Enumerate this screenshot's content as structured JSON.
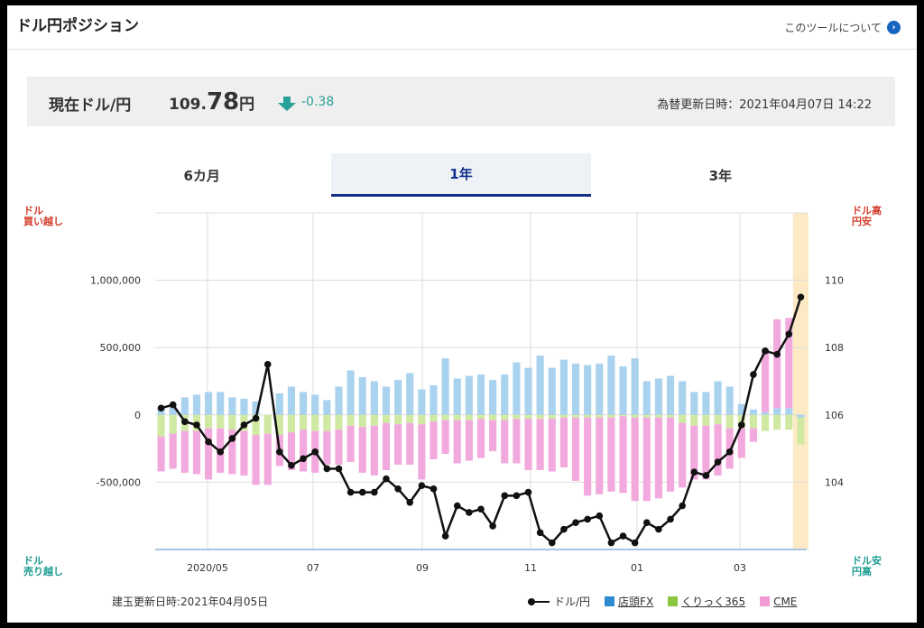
{
  "header": {
    "title": "ドル円ポジション",
    "about_link": "このツールについて",
    "about_icon": "chevron-right-icon"
  },
  "rate": {
    "label": "現在ドル/円",
    "value_int": "109.",
    "value_dec": "78",
    "unit": "円",
    "change": "-0.38",
    "direction_icon": "arrow-down-icon",
    "updated": "為替更新日時：2021年04月07日 14:22"
  },
  "tabs": [
    {
      "label": "6カ月",
      "active": false
    },
    {
      "label": "1年",
      "active": true
    },
    {
      "label": "3年",
      "active": false
    }
  ],
  "corners": {
    "left_top": [
      "ドル",
      "買い越し"
    ],
    "left_bottom": [
      "ドル",
      "売り越し"
    ],
    "right_top": [
      "ドル高",
      "円安"
    ],
    "right_bottom": [
      "ドル安",
      "円高"
    ]
  },
  "footer": {
    "position_updated": "建玉更新日時:2021年04月05日"
  },
  "legend": [
    {
      "label": "ドル/円",
      "color": "#111111",
      "kind": "line"
    },
    {
      "label": "店頭FX",
      "color": "#2d8ad1",
      "kind": "box"
    },
    {
      "label": "くりっく365",
      "color": "#8dc63f",
      "kind": "box"
    },
    {
      "label": "CME",
      "color": "#f19ad4",
      "kind": "box"
    }
  ],
  "chart_data": {
    "type": "bar",
    "x_ticks": [
      "2020/05",
      "07",
      "09",
      "11",
      "01",
      "03"
    ],
    "y_left_ticks": [
      "1,000,000",
      "500,000",
      "0",
      "-500,000"
    ],
    "y_left_values": [
      1000000,
      500000,
      0,
      -500000
    ],
    "y_left_range": [
      -1000000,
      1500000
    ],
    "y_right_ticks": [
      "110",
      "108",
      "106",
      "104"
    ],
    "y_right_values": [
      110,
      108,
      106,
      104
    ],
    "y_right_range": [
      102,
      112
    ],
    "colors": {
      "tentou": "#a9d2ef",
      "click365": "#cfe9a3",
      "cme": "#f2a9dd",
      "line": "#111111",
      "highlight": "#fde9c4",
      "grid": "#dcdcdc"
    },
    "series": [
      {
        "name": "店頭FX",
        "values": [
          50000,
          80000,
          130000,
          150000,
          170000,
          170000,
          130000,
          120000,
          100000,
          0,
          160000,
          210000,
          170000,
          150000,
          110000,
          210000,
          330000,
          280000,
          250000,
          210000,
          260000,
          310000,
          190000,
          220000,
          420000,
          270000,
          290000,
          300000,
          260000,
          300000,
          390000,
          350000,
          440000,
          350000,
          410000,
          380000,
          370000,
          380000,
          440000,
          360000,
          420000,
          250000,
          270000,
          290000,
          250000,
          170000,
          170000,
          250000,
          210000,
          80000,
          40000,
          20000,
          50000,
          50000,
          -20000
        ]
      },
      {
        "name": "くりっく365",
        "values": [
          -160000,
          -140000,
          -120000,
          -120000,
          -100000,
          -100000,
          -110000,
          -120000,
          -150000,
          -140000,
          -150000,
          -130000,
          -110000,
          -120000,
          -120000,
          -110000,
          -80000,
          -90000,
          -80000,
          -60000,
          -70000,
          -60000,
          -70000,
          -50000,
          -40000,
          -40000,
          -40000,
          -30000,
          -40000,
          -40000,
          -30000,
          -30000,
          -30000,
          -30000,
          -20000,
          -20000,
          -20000,
          -20000,
          -20000,
          -10000,
          -20000,
          -20000,
          -20000,
          -20000,
          -60000,
          -80000,
          -80000,
          -70000,
          -100000,
          -100000,
          -100000,
          -120000,
          -110000,
          -110000,
          -200000
        ]
      },
      {
        "name": "CME",
        "values": [
          -260000,
          -260000,
          -310000,
          -320000,
          -380000,
          -330000,
          -330000,
          -330000,
          -370000,
          -380000,
          -230000,
          -280000,
          -310000,
          -310000,
          -250000,
          -260000,
          -270000,
          -340000,
          -370000,
          -350000,
          -300000,
          -310000,
          -410000,
          -280000,
          -250000,
          -320000,
          -300000,
          -290000,
          -230000,
          -320000,
          -330000,
          -380000,
          -380000,
          -390000,
          -370000,
          -470000,
          -580000,
          -570000,
          -550000,
          -570000,
          -620000,
          -620000,
          -600000,
          -550000,
          -480000,
          -400000,
          -400000,
          -380000,
          -300000,
          -220000,
          -100000,
          470000,
          660000,
          670000,
          0
        ]
      },
      {
        "name": "ドル/円",
        "values": [
          106.2,
          106.3,
          105.8,
          105.7,
          105.2,
          104.9,
          105.3,
          105.7,
          105.9,
          107.5,
          104.9,
          104.5,
          104.7,
          104.9,
          104.4,
          104.4,
          103.7,
          103.7,
          103.7,
          104.1,
          103.8,
          103.4,
          103.9,
          103.8,
          102.4,
          103.3,
          103.1,
          103.2,
          102.7,
          103.6,
          103.6,
          103.7,
          102.5,
          102.2,
          102.6,
          102.8,
          102.9,
          103.0,
          102.2,
          102.4,
          102.2,
          102.8,
          102.6,
          102.9,
          103.3,
          104.3,
          104.2,
          104.6,
          104.9,
          105.7,
          107.2,
          107.9,
          107.8,
          108.4,
          109.5
        ]
      }
    ],
    "line_x_indices": [
      0,
      1,
      2,
      3,
      4,
      5,
      6,
      7,
      8,
      9,
      10,
      11,
      12,
      13,
      14,
      15,
      16,
      17,
      18,
      19,
      20,
      21,
      22,
      23,
      24,
      25,
      26,
      27,
      28,
      29,
      30,
      31,
      32,
      33,
      34,
      35,
      36,
      37,
      38,
      39,
      40,
      41,
      42,
      43,
      44,
      45,
      46,
      47,
      48,
      49,
      50,
      51,
      52,
      53,
      54
    ]
  }
}
